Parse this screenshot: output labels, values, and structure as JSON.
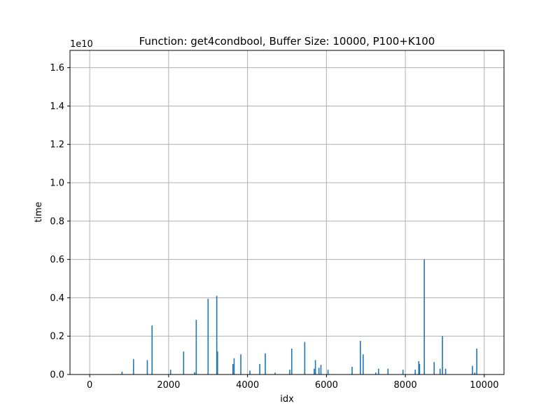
{
  "chart_data": {
    "type": "bar",
    "title": "Function: get4condbool, Buffer Size: 10000, P100+K100",
    "xlabel": "idx",
    "ylabel": "time",
    "y_offset_label": "1e10",
    "y_scale": 10000000000,
    "xlim": [
      -500,
      10500
    ],
    "ylim": [
      0,
      16.9
    ],
    "x_ticks": [
      0,
      2000,
      4000,
      6000,
      8000,
      10000
    ],
    "x_tick_labels": [
      "0",
      "2000",
      "4000",
      "6000",
      "8000",
      "10000"
    ],
    "y_ticks": [
      0,
      2,
      4,
      6,
      8,
      10,
      12,
      14,
      16
    ],
    "y_tick_labels": [
      "0.0",
      "0.2",
      "0.4",
      "0.6",
      "0.8",
      "1.0",
      "1.2",
      "1.4",
      "1.6"
    ],
    "grid": true,
    "bar_color": "#1f77b4",
    "series": [
      {
        "x": [
          820,
          1110,
          1460,
          1580,
          2050,
          2380,
          2660,
          2700,
          3000,
          3220,
          3240,
          3630,
          3660,
          3830,
          4060,
          4310,
          4450,
          4700,
          5070,
          5120,
          5450,
          5690,
          5720,
          5810,
          5860,
          6040,
          6650,
          6860,
          6930,
          7250,
          7320,
          7560,
          7940,
          8250,
          8340,
          8360,
          8480,
          8730,
          8880,
          8940,
          9020,
          9700,
          9760,
          9810
        ],
        "values": [
          0.15,
          0.8,
          0.75,
          2.55,
          0.25,
          1.2,
          0.12,
          2.85,
          3.95,
          4.1,
          1.2,
          0.55,
          0.85,
          1.05,
          0.2,
          0.55,
          1.1,
          0.1,
          0.25,
          1.35,
          1.7,
          0.3,
          0.75,
          0.35,
          0.5,
          0.25,
          0.4,
          1.75,
          1.05,
          0.1,
          0.3,
          0.3,
          0.25,
          0.25,
          0.7,
          0.55,
          6.0,
          0.65,
          0.3,
          2.0,
          0.3,
          0.45,
          0.1,
          1.35
        ]
      }
    ]
  }
}
